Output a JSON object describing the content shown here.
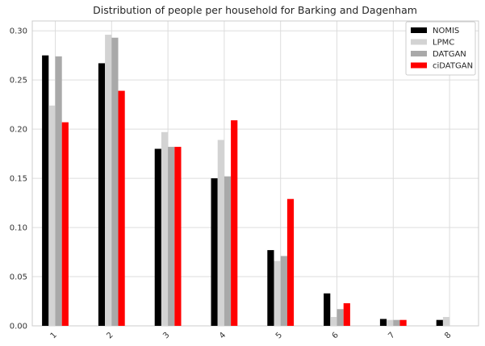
{
  "chart_data": {
    "type": "bar",
    "title": "Distribution of people per household for Barking and Dagenham",
    "xlabel": "",
    "ylabel": "",
    "categories": [
      "1",
      "2",
      "3",
      "4",
      "5",
      "6",
      "7",
      "8"
    ],
    "ylim": [
      0,
      0.31
    ],
    "yticks": [
      "0.00",
      "0.05",
      "0.10",
      "0.15",
      "0.20",
      "0.25",
      "0.30"
    ],
    "grid": true,
    "legend_position": "top-right",
    "series": [
      {
        "name": "NOMIS",
        "color": "#000000",
        "values": [
          0.275,
          0.267,
          0.18,
          0.15,
          0.077,
          0.033,
          0.007,
          0.006
        ]
      },
      {
        "name": "LPMC",
        "color": "#d3d3d3",
        "values": [
          0.224,
          0.296,
          0.197,
          0.189,
          0.066,
          0.009,
          0.006,
          0.009
        ]
      },
      {
        "name": "DATGAN",
        "color": "#a9a9a9",
        "values": [
          0.274,
          0.293,
          0.182,
          0.152,
          0.071,
          0.017,
          0.006,
          0.0
        ]
      },
      {
        "name": "ciDATGAN",
        "color": "#ff0000",
        "values": [
          0.207,
          0.239,
          0.182,
          0.209,
          0.129,
          0.023,
          0.006,
          0.0
        ]
      }
    ]
  }
}
